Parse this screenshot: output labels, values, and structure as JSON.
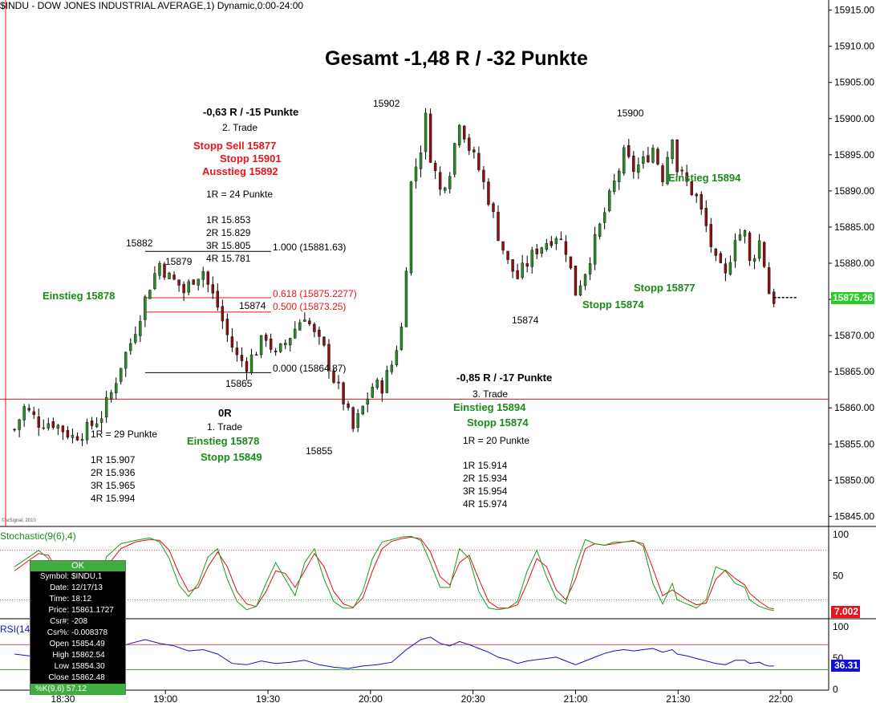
{
  "header": {
    "title": "$INDU - DOW JONES INDUSTRIAL AVERAGE,1) Dynamic,0:00-24:00"
  },
  "copyright": "© eSignal, 2010",
  "annotations": {
    "gesamt": "Gesamt -1,48 R / -32 Punkte",
    "t2_result": "-0,63 R / -15 Punkte",
    "t2_label": "2. Trade",
    "t2_stopp_sell": "Stopp Sell 15877",
    "t2_stopp": "Stopp 15901",
    "t2_ausstieg": "Ausstieg 15892",
    "t2_1r": "1R = 24 Punkte",
    "t2_r1": "1R 15.853",
    "t2_r2": "2R 15.829",
    "t2_r3": "3R 15.805",
    "t2_r4": "4R 15.781",
    "lbl_15882": "15882",
    "lbl_15879": "15879",
    "lbl_15874a": "15874",
    "lbl_15865": "15865",
    "lbl_15855": "15855",
    "lbl_15902": "15902",
    "lbl_15900": "15900",
    "lbl_15874b": "15874",
    "fib_1000": "1.000 (15881.63)",
    "fib_0618": "0.618 (15875.2277)",
    "fib_0500": "0.500 (15873.25)",
    "fib_0000": "0.000 (15864.87)",
    "einstieg_left": "Einstieg 15878",
    "t1_result": "0R",
    "t1_label": "1. Trade",
    "t1_einstieg": "Einstieg 15878",
    "t1_stopp": "Stopp 15849",
    "t1_1r": "1R = 29 Punkte",
    "t1_r1": "1R 15.907",
    "t1_r2": "2R 15.936",
    "t1_r3": "3R 15.965",
    "t1_r4": "4R 15.994",
    "t3_result": "-0,85 R / -17 Punkte",
    "t3_label": "3. Trade",
    "t3_einstieg": "Einstieg 15894",
    "t3_stopp": "Stopp 15874",
    "t3_1r": "1R = 20 Punkte",
    "t3_r1": "1R 15.914",
    "t3_r2": "2R 15.934",
    "t3_r3": "3R 15.954",
    "t3_r4": "4R 15.974",
    "einstieg_right": "Einstieg 15894",
    "stopp_right_a": "Stopp 15877",
    "stopp_right_b": "Stopp 15874"
  },
  "tooltip": {
    "ok": "OK",
    "rows": [
      {
        "k": "Symbol:",
        "v": "$INDU,1"
      },
      {
        "k": "Date:",
        "v": "12/17/13"
      },
      {
        "k": "Time:",
        "v": "18:12"
      },
      {
        "k": "Price:",
        "v": "15861.1727"
      },
      {
        "k": "Csr#:",
        "v": "-208"
      },
      {
        "k": "Csr%:",
        "v": "-0.008378"
      },
      {
        "k": "Open",
        "v": "15854.49"
      },
      {
        "k": "High",
        "v": "15862.54"
      },
      {
        "k": "Low",
        "v": "15854.30"
      },
      {
        "k": "Close",
        "v": "15862.48"
      }
    ],
    "last": "%K(9,6) 57.12"
  },
  "panels": {
    "stoch_label": "Stochastic(9(6),4)",
    "rsi_label": "RSI(14"
  },
  "colors": {
    "bull": "#2a8a2a",
    "bear": "#8b1010",
    "grid_red": "#e8141c",
    "grid_green": "#22a022",
    "stoch_k": "#1a9a1a",
    "stoch_d": "#e01010",
    "rsi": "#1010c8",
    "last_price_bg": "#22d022",
    "stoch_val_bg": "#e8141c",
    "rsi_val_bg": "#1010d8"
  },
  "chart_data": {
    "type": "candlestick",
    "symbol": "$INDU",
    "x_ticks": [
      "18:30",
      "19:00",
      "19:30",
      "20:00",
      "20:30",
      "21:00",
      "21:30",
      "22:00"
    ],
    "price_axis": {
      "ticks": [
        15845,
        15850,
        15855,
        15860,
        15865,
        15870,
        15875,
        15880,
        15885,
        15890,
        15895,
        15900,
        15905,
        15910,
        15915
      ],
      "tick_labels": [
        "15845.00",
        "15850.00",
        "15855.00",
        "15860.00",
        "15865.00",
        "15870.00",
        "15875.00",
        "15880.00",
        "15885.00",
        "15890.00",
        "15895.00",
        "15900.00",
        "15905.00",
        "15910.00",
        "15915.00"
      ],
      "range": [
        15843.6,
        15916.4
      ]
    },
    "last_price": "15875.26",
    "horizontal_line": 15861.2,
    "fib_levels": [
      {
        "ratio": 1.0,
        "price": 15881.63
      },
      {
        "ratio": 0.618,
        "price": 15875.2277
      },
      {
        "ratio": 0.5,
        "price": 15873.25
      },
      {
        "ratio": 0.0,
        "price": 15864.87
      }
    ],
    "close_path": [
      [
        0,
        15857
      ],
      [
        2,
        15860
      ],
      [
        5,
        15858
      ],
      [
        8,
        15858
      ],
      [
        12,
        15856
      ],
      [
        15,
        15857
      ],
      [
        18,
        15859
      ],
      [
        20,
        15862
      ],
      [
        22,
        15866
      ],
      [
        24,
        15869
      ],
      [
        26,
        15873
      ],
      [
        28,
        15877
      ],
      [
        30,
        15880
      ],
      [
        32,
        15878
      ],
      [
        34,
        15877
      ],
      [
        35,
        15876
      ],
      [
        37,
        15878
      ],
      [
        39,
        15879
      ],
      [
        40,
        15877
      ],
      [
        42,
        15874
      ],
      [
        44,
        15870
      ],
      [
        46,
        15867
      ],
      [
        48,
        15866
      ],
      [
        50,
        15868
      ],
      [
        52,
        15870
      ],
      [
        54,
        15867
      ],
      [
        56,
        15869
      ],
      [
        58,
        15871
      ],
      [
        60,
        15873
      ],
      [
        62,
        15870
      ],
      [
        64,
        15868
      ],
      [
        66,
        15864
      ],
      [
        68,
        15861
      ],
      [
        70,
        15857
      ],
      [
        72,
        15860
      ],
      [
        74,
        15863
      ],
      [
        76,
        15863
      ],
      [
        78,
        15866
      ],
      [
        80,
        15871
      ],
      [
        81,
        15880
      ],
      [
        82,
        15891
      ],
      [
        84,
        15896
      ],
      [
        85,
        15900
      ],
      [
        86,
        15895
      ],
      [
        88,
        15890
      ],
      [
        90,
        15893
      ],
      [
        92,
        15900
      ],
      [
        94,
        15896
      ],
      [
        96,
        15893
      ],
      [
        98,
        15889
      ],
      [
        100,
        15884
      ],
      [
        102,
        15880
      ],
      [
        104,
        15878
      ],
      [
        106,
        15880
      ],
      [
        108,
        15882
      ],
      [
        110,
        15883
      ],
      [
        112,
        15884
      ],
      [
        114,
        15882
      ],
      [
        116,
        15876
      ],
      [
        118,
        15879
      ],
      [
        120,
        15883
      ],
      [
        122,
        15887
      ],
      [
        124,
        15891
      ],
      [
        126,
        15895
      ],
      [
        128,
        15893
      ],
      [
        130,
        15894
      ],
      [
        132,
        15896
      ],
      [
        134,
        15892
      ],
      [
        136,
        15898
      ],
      [
        137,
        15893
      ],
      [
        139,
        15891
      ],
      [
        141,
        15889
      ],
      [
        143,
        15885
      ],
      [
        145,
        15880
      ],
      [
        147,
        15878
      ],
      [
        149,
        15884
      ],
      [
        151,
        15884
      ],
      [
        152,
        15880
      ],
      [
        154,
        15883
      ],
      [
        155,
        15880
      ],
      [
        156,
        15876
      ],
      [
        157,
        15875
      ]
    ],
    "x_range": [
      -3,
      168
    ],
    "stochastic": {
      "name": "Stochastic(9(6),4)",
      "ticks": [
        50,
        100
      ],
      "levels": [
        20,
        80
      ],
      "last_value_label": "7.002",
      "k": [
        [
          0,
          60
        ],
        [
          3,
          72
        ],
        [
          5,
          80
        ],
        [
          7,
          70
        ],
        [
          9,
          45
        ],
        [
          11,
          30
        ],
        [
          13,
          42
        ],
        [
          15,
          40
        ],
        [
          17,
          28
        ],
        [
          19,
          72
        ],
        [
          22,
          88
        ],
        [
          25,
          92
        ],
        [
          28,
          95
        ],
        [
          30,
          90
        ],
        [
          32,
          70
        ],
        [
          34,
          38
        ],
        [
          36,
          24
        ],
        [
          38,
          40
        ],
        [
          40,
          72
        ],
        [
          42,
          82
        ],
        [
          44,
          45
        ],
        [
          46,
          18
        ],
        [
          48,
          8
        ],
        [
          50,
          12
        ],
        [
          52,
          40
        ],
        [
          54,
          65
        ],
        [
          56,
          45
        ],
        [
          58,
          25
        ],
        [
          60,
          65
        ],
        [
          62,
          82
        ],
        [
          64,
          45
        ],
        [
          66,
          18
        ],
        [
          68,
          10
        ],
        [
          70,
          10
        ],
        [
          72,
          30
        ],
        [
          74,
          70
        ],
        [
          76,
          90
        ],
        [
          78,
          93
        ],
        [
          80,
          96
        ],
        [
          82,
          97
        ],
        [
          84,
          92
        ],
        [
          86,
          65
        ],
        [
          88,
          35
        ],
        [
          90,
          35
        ],
        [
          92,
          82
        ],
        [
          94,
          70
        ],
        [
          96,
          30
        ],
        [
          98,
          10
        ],
        [
          100,
          8
        ],
        [
          102,
          10
        ],
        [
          104,
          18
        ],
        [
          106,
          55
        ],
        [
          108,
          80
        ],
        [
          110,
          48
        ],
        [
          112,
          22
        ],
        [
          114,
          15
        ],
        [
          116,
          60
        ],
        [
          118,
          93
        ],
        [
          120,
          88
        ],
        [
          122,
          86
        ],
        [
          124,
          90
        ],
        [
          126,
          90
        ],
        [
          128,
          92
        ],
        [
          130,
          85
        ],
        [
          132,
          40
        ],
        [
          134,
          15
        ],
        [
          136,
          40
        ],
        [
          137,
          20
        ],
        [
          139,
          15
        ],
        [
          141,
          10
        ],
        [
          143,
          20
        ],
        [
          145,
          60
        ],
        [
          147,
          55
        ],
        [
          149,
          40
        ],
        [
          151,
          35
        ],
        [
          152,
          20
        ],
        [
          154,
          12
        ],
        [
          156,
          8
        ],
        [
          157,
          7
        ]
      ],
      "d": [
        [
          0,
          55
        ],
        [
          3,
          68
        ],
        [
          5,
          76
        ],
        [
          7,
          74
        ],
        [
          9,
          55
        ],
        [
          11,
          38
        ],
        [
          13,
          40
        ],
        [
          15,
          40
        ],
        [
          17,
          34
        ],
        [
          19,
          60
        ],
        [
          22,
          82
        ],
        [
          25,
          90
        ],
        [
          28,
          93
        ],
        [
          30,
          92
        ],
        [
          32,
          80
        ],
        [
          34,
          52
        ],
        [
          36,
          30
        ],
        [
          38,
          35
        ],
        [
          40,
          60
        ],
        [
          42,
          78
        ],
        [
          44,
          60
        ],
        [
          46,
          30
        ],
        [
          48,
          15
        ],
        [
          50,
          12
        ],
        [
          52,
          30
        ],
        [
          54,
          55
        ],
        [
          56,
          52
        ],
        [
          58,
          35
        ],
        [
          60,
          55
        ],
        [
          62,
          76
        ],
        [
          64,
          60
        ],
        [
          66,
          30
        ],
        [
          68,
          15
        ],
        [
          70,
          11
        ],
        [
          72,
          22
        ],
        [
          74,
          55
        ],
        [
          76,
          82
        ],
        [
          78,
          91
        ],
        [
          80,
          94
        ],
        [
          82,
          96
        ],
        [
          84,
          94
        ],
        [
          86,
          78
        ],
        [
          88,
          48
        ],
        [
          90,
          38
        ],
        [
          92,
          65
        ],
        [
          94,
          74
        ],
        [
          96,
          45
        ],
        [
          98,
          18
        ],
        [
          100,
          10
        ],
        [
          102,
          10
        ],
        [
          104,
          14
        ],
        [
          106,
          40
        ],
        [
          108,
          70
        ],
        [
          110,
          60
        ],
        [
          112,
          32
        ],
        [
          114,
          20
        ],
        [
          116,
          45
        ],
        [
          118,
          82
        ],
        [
          120,
          88
        ],
        [
          122,
          86
        ],
        [
          124,
          88
        ],
        [
          126,
          90
        ],
        [
          128,
          91
        ],
        [
          130,
          88
        ],
        [
          132,
          58
        ],
        [
          134,
          25
        ],
        [
          136,
          32
        ],
        [
          137,
          28
        ],
        [
          139,
          20
        ],
        [
          141,
          14
        ],
        [
          143,
          16
        ],
        [
          145,
          45
        ],
        [
          147,
          56
        ],
        [
          149,
          46
        ],
        [
          151,
          38
        ],
        [
          152,
          28
        ],
        [
          154,
          18
        ],
        [
          156,
          10
        ],
        [
          157,
          9
        ]
      ]
    },
    "rsi": {
      "name": "RSI(14",
      "ticks": [
        0,
        50,
        100
      ],
      "levels": [
        30,
        70
      ],
      "last_value_label": "36.31",
      "values": [
        [
          0,
          55
        ],
        [
          3,
          52
        ],
        [
          6,
          48
        ],
        [
          9,
          45
        ],
        [
          12,
          48
        ],
        [
          15,
          55
        ],
        [
          18,
          60
        ],
        [
          21,
          65
        ],
        [
          24,
          72
        ],
        [
          27,
          78
        ],
        [
          30,
          72
        ],
        [
          33,
          68
        ],
        [
          36,
          60
        ],
        [
          39,
          62
        ],
        [
          42,
          55
        ],
        [
          45,
          40
        ],
        [
          48,
          38
        ],
        [
          51,
          44
        ],
        [
          54,
          40
        ],
        [
          57,
          42
        ],
        [
          60,
          45
        ],
        [
          63,
          38
        ],
        [
          66,
          34
        ],
        [
          69,
          32
        ],
        [
          72,
          36
        ],
        [
          75,
          38
        ],
        [
          78,
          42
        ],
        [
          81,
          62
        ],
        [
          84,
          78
        ],
        [
          86,
          82
        ],
        [
          88,
          72
        ],
        [
          90,
          68
        ],
        [
          92,
          75
        ],
        [
          94,
          70
        ],
        [
          96,
          64
        ],
        [
          98,
          58
        ],
        [
          100,
          50
        ],
        [
          102,
          46
        ],
        [
          104,
          40
        ],
        [
          106,
          44
        ],
        [
          108,
          46
        ],
        [
          110,
          48
        ],
        [
          112,
          50
        ],
        [
          114,
          44
        ],
        [
          116,
          38
        ],
        [
          118,
          44
        ],
        [
          120,
          50
        ],
        [
          122,
          56
        ],
        [
          124,
          60
        ],
        [
          126,
          62
        ],
        [
          128,
          60
        ],
        [
          130,
          62
        ],
        [
          132,
          64
        ],
        [
          134,
          58
        ],
        [
          136,
          62
        ],
        [
          137,
          55
        ],
        [
          139,
          52
        ],
        [
          141,
          48
        ],
        [
          143,
          44
        ],
        [
          145,
          40
        ],
        [
          147,
          38
        ],
        [
          149,
          45
        ],
        [
          151,
          45
        ],
        [
          152,
          40
        ],
        [
          154,
          42
        ],
        [
          155,
          38
        ],
        [
          156,
          36
        ],
        [
          157,
          36
        ]
      ]
    }
  }
}
